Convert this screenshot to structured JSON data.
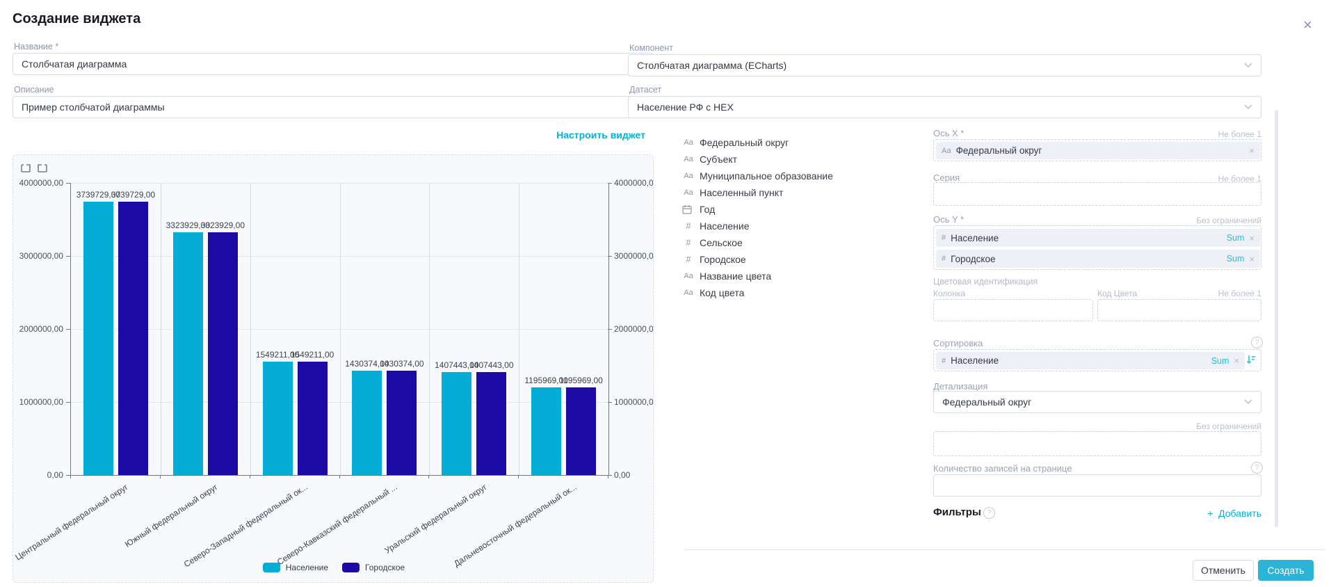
{
  "header": {
    "title": "Создание виджета"
  },
  "icons": {
    "close": "×",
    "help": "?",
    "add": "+",
    "text_field": "Аа",
    "number_field": "#"
  },
  "form": {
    "name_label": "Название *",
    "name_value": "Столбчатая диаграмма",
    "description_label": "Описание",
    "description_value": "Пример столбчатой диаграммы",
    "configure_link": "Настроить виджет"
  },
  "component": {
    "label": "Компонент",
    "value": "Столбчатая диаграмма (ECharts)"
  },
  "dataset": {
    "label": "Датасет",
    "value": "Население РФ с HEX"
  },
  "fields": {
    "items": [
      {
        "type": "text",
        "label": "Федеральный округ"
      },
      {
        "type": "text",
        "label": "Субъект"
      },
      {
        "type": "text",
        "label": "Муниципальное образование"
      },
      {
        "type": "text",
        "label": "Населенный пункт"
      },
      {
        "type": "date",
        "label": "Год"
      },
      {
        "type": "number",
        "label": "Население"
      },
      {
        "type": "number",
        "label": "Сельское"
      },
      {
        "type": "number",
        "label": "Городское"
      },
      {
        "type": "text",
        "label": "Название цвета"
      },
      {
        "type": "text",
        "label": "Код цвета"
      }
    ]
  },
  "config": {
    "x_axis": {
      "label": "Ось X *",
      "hint": "Не более 1",
      "chip": {
        "type": "text",
        "label": "Федеральный округ"
      }
    },
    "series": {
      "label": "Серия",
      "hint": "Не более 1"
    },
    "y_axis": {
      "label": "Ось Y *",
      "hint": "Без ограничений",
      "chips": [
        {
          "type": "number",
          "label": "Население",
          "agg": "Sum"
        },
        {
          "type": "number",
          "label": "Городское",
          "agg": "Sum"
        }
      ]
    },
    "color_ident": {
      "label": "Цветовая идентификация",
      "column_label": "Колонка",
      "code_label": "Код Цвета",
      "hint": "Не более 1"
    },
    "sorting": {
      "label": "Сортировка",
      "chip": {
        "type": "number",
        "label": "Население",
        "agg": "Sum"
      }
    },
    "detail": {
      "label": "Детализация",
      "value": "Федеральный округ",
      "hint": "Без ограничений"
    },
    "page_size": {
      "label": "Количество записей на странице",
      "value": ""
    },
    "filters": {
      "label": "Фильтры",
      "add_label": "Добавить"
    }
  },
  "footer": {
    "cancel_label": "Отменить",
    "create_label": "Создать"
  },
  "colors": {
    "accent": "#00b2dc",
    "create_button": "#2bb4d6",
    "series_1": "#04add6",
    "series_2": "#1b0ba4"
  },
  "chart_data": {
    "type": "bar",
    "categories": [
      "Центральный федеральный округ",
      "Южный федеральный округ",
      "Северо-Западный федеральный ок...",
      "Северо-Кавказский федеральный ...",
      "Уральский федеральный округ",
      "Дальневосточный федеральный ок..."
    ],
    "series": [
      {
        "name": "Население",
        "color": "#04add6",
        "values": [
          3739729,
          3323929,
          1549211,
          1430374,
          1407443,
          1195969
        ]
      },
      {
        "name": "Городское",
        "color": "#1b0ba4",
        "values": [
          3739729,
          3323929,
          1549211,
          1430374,
          1407443,
          1195969
        ]
      }
    ],
    "ylim": [
      0,
      4000000
    ],
    "y_ticks": [
      "0,00",
      "1000000,00",
      "2000000,00",
      "3000000,00",
      "4000000,00"
    ],
    "value_labels_on_bars": true,
    "grid": true,
    "legend_position": "bottom",
    "xlabel": "",
    "ylabel": "",
    "title": ""
  }
}
